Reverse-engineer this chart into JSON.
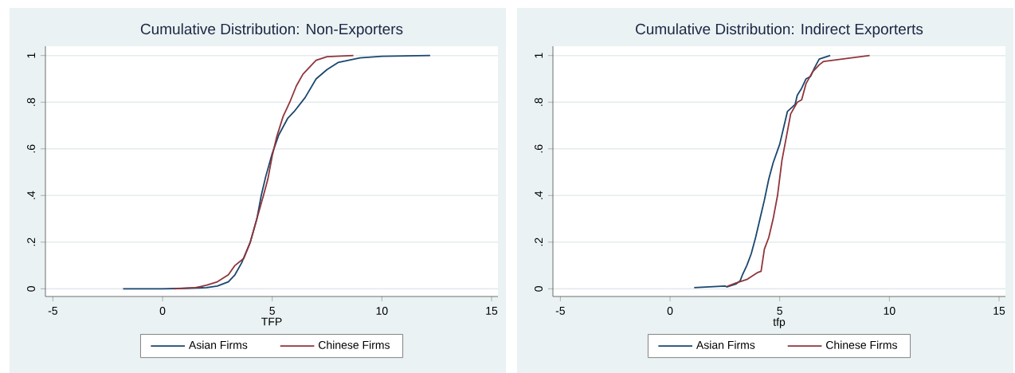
{
  "chart_data": [
    {
      "type": "line",
      "title": "Cumulative Distribution: Non-Exporters",
      "xlabel": "TFP",
      "xlim": [
        -5.34,
        15.29
      ],
      "ylim": [
        -0.033,
        1.04
      ],
      "xticks": [
        -5,
        0,
        5,
        10,
        15
      ],
      "yticks": [
        0,
        {
          "value": 0.2,
          "label": ".2"
        },
        {
          "value": 0.4,
          "label": ".4"
        },
        {
          "value": 0.6,
          "label": ".6"
        },
        {
          "value": 0.8,
          "label": ".8"
        },
        1
      ],
      "grid": "y",
      "legend": "bottom",
      "series": [
        {
          "name": "Asian Firms",
          "color": "#1a476f",
          "x": [
            -1.8,
            0,
            1,
            2,
            2.5,
            3,
            3.3,
            3.6,
            4,
            4.3,
            4.5,
            4.7,
            5,
            5.3,
            5.7,
            6,
            6.5,
            7,
            7.5,
            8,
            9,
            10,
            12.2
          ],
          "values": [
            0,
            0,
            0.002,
            0.005,
            0.012,
            0.03,
            0.06,
            0.11,
            0.2,
            0.3,
            0.4,
            0.48,
            0.58,
            0.66,
            0.73,
            0.76,
            0.82,
            0.9,
            0.94,
            0.97,
            0.99,
            0.997,
            1
          ]
        },
        {
          "name": "Chinese Firms",
          "color": "#90353b",
          "x": [
            0.5,
            1.5,
            2,
            2.5,
            3,
            3.3,
            3.7,
            4,
            4.3,
            4.6,
            4.8,
            5,
            5.2,
            5.5,
            5.8,
            6.1,
            6.4,
            6.8,
            7,
            7.5,
            8.7
          ],
          "values": [
            0,
            0.005,
            0.015,
            0.03,
            0.06,
            0.1,
            0.13,
            0.2,
            0.3,
            0.4,
            0.47,
            0.57,
            0.65,
            0.74,
            0.8,
            0.87,
            0.92,
            0.96,
            0.98,
            0.995,
            1
          ]
        }
      ]
    },
    {
      "type": "line",
      "title": "Cumulative Distribution: Indirect Exporterts",
      "xlabel": "tfp",
      "xlim": [
        -5.34,
        15.29
      ],
      "ylim": [
        -0.033,
        1.04
      ],
      "xticks": [
        -5,
        0,
        5,
        10,
        15
      ],
      "yticks": [
        0,
        {
          "value": 0.2,
          "label": ".2"
        },
        {
          "value": 0.4,
          "label": ".4"
        },
        {
          "value": 0.6,
          "label": ".6"
        },
        {
          "value": 0.8,
          "label": ".8"
        },
        1
      ],
      "grid": "y",
      "legend": "bottom",
      "series": [
        {
          "name": "Asian Firms",
          "color": "#1a476f",
          "x": [
            1.1,
            2.5,
            2.6,
            3,
            3.2,
            3.3,
            3.5,
            3.7,
            3.9,
            4.1,
            4.3,
            4.5,
            4.7,
            5,
            5.2,
            5.35,
            5.7,
            5.8,
            6,
            6.2,
            6.4,
            6.6,
            6.8,
            7.3
          ],
          "values": [
            0.005,
            0.012,
            0.008,
            0.02,
            0.035,
            0.06,
            0.1,
            0.15,
            0.22,
            0.3,
            0.38,
            0.47,
            0.54,
            0.62,
            0.7,
            0.76,
            0.79,
            0.83,
            0.86,
            0.9,
            0.91,
            0.95,
            0.985,
            1
          ]
        },
        {
          "name": "Chinese Firms",
          "color": "#90353b",
          "x": [
            2.6,
            3,
            3.5,
            4,
            4.15,
            4.3,
            4.5,
            4.7,
            4.9,
            5.1,
            5.3,
            5.5,
            5.8,
            6,
            6.2,
            6.5,
            6.8,
            7,
            9.1
          ],
          "values": [
            0.01,
            0.025,
            0.04,
            0.07,
            0.075,
            0.17,
            0.22,
            0.3,
            0.4,
            0.55,
            0.65,
            0.75,
            0.8,
            0.81,
            0.88,
            0.93,
            0.96,
            0.975,
            1
          ]
        }
      ]
    }
  ]
}
